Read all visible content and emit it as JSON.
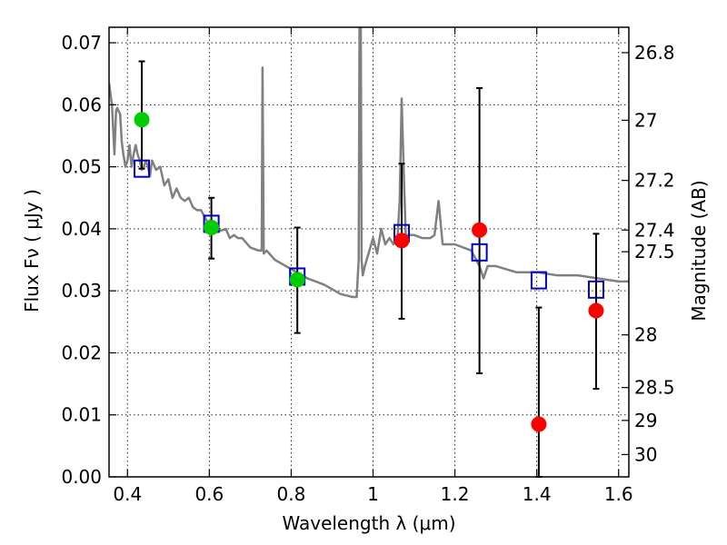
{
  "chart_data": {
    "type": "scatter",
    "xlabel": "Wavelength  λ (μm)",
    "ylabel_left": "Flux  Fν  ( μJy )",
    "ylabel_right": "Magnitude (AB)",
    "xlim": [
      0.355,
      1.625
    ],
    "ylim": [
      0.0,
      0.0725
    ],
    "grid": true,
    "x_ticks": [
      0.4,
      0.6,
      0.8,
      1.0,
      1.2,
      1.4,
      1.6
    ],
    "x_tick_labels": [
      "0.4",
      "0.6",
      "0.8",
      "1",
      "1.2",
      "1.4",
      "1.6"
    ],
    "y_ticks": [
      0.0,
      0.01,
      0.02,
      0.03,
      0.04,
      0.05,
      0.06,
      0.07
    ],
    "y_tick_labels": [
      "0.00",
      "0.01",
      "0.02",
      "0.03",
      "0.04",
      "0.05",
      "0.06",
      "0.07"
    ],
    "right_ticks": [
      {
        "flux": 0.0684,
        "label": "26.8"
      },
      {
        "flux": 0.0575,
        "label": "27"
      },
      {
        "flux": 0.0478,
        "label": "27.2"
      },
      {
        "flux": 0.0398,
        "label": "27.4"
      },
      {
        "flux": 0.0363,
        "label": "27.5"
      },
      {
        "flux": 0.0229,
        "label": "28"
      },
      {
        "flux": 0.0144,
        "label": "28.5"
      },
      {
        "flux": 0.0091,
        "label": "29"
      },
      {
        "flux": 0.0036,
        "label": "30"
      }
    ],
    "model_spectrum": {
      "color": "#808080",
      "x": [
        0.355,
        0.362,
        0.368,
        0.372,
        0.375,
        0.378,
        0.382,
        0.386,
        0.39,
        0.395,
        0.4,
        0.405,
        0.41,
        0.415,
        0.42,
        0.425,
        0.43,
        0.435,
        0.44,
        0.445,
        0.45,
        0.455,
        0.46,
        0.47,
        0.48,
        0.49,
        0.5,
        0.51,
        0.52,
        0.53,
        0.54,
        0.55,
        0.56,
        0.57,
        0.58,
        0.6,
        0.62,
        0.64,
        0.65,
        0.66,
        0.67,
        0.68,
        0.7,
        0.72,
        0.728,
        0.73,
        0.733,
        0.74,
        0.76,
        0.8,
        0.84,
        0.88,
        0.92,
        0.95,
        0.96,
        0.965,
        0.967,
        0.97,
        0.972,
        0.975,
        0.98,
        1.0,
        1.01,
        1.02,
        1.03,
        1.04,
        1.05,
        1.06,
        1.065,
        1.07,
        1.075,
        1.08,
        1.09,
        1.1,
        1.12,
        1.14,
        1.15,
        1.16,
        1.17,
        1.2,
        1.24,
        1.26,
        1.27,
        1.28,
        1.3,
        1.35,
        1.4,
        1.45,
        1.5,
        1.55,
        1.6,
        1.625
      ],
      "y": [
        0.0635,
        0.06,
        0.052,
        0.059,
        0.0595,
        0.059,
        0.0585,
        0.054,
        0.052,
        0.05,
        0.051,
        0.0535,
        0.05,
        0.052,
        0.0535,
        0.052,
        0.051,
        0.0495,
        0.05,
        0.051,
        0.05,
        0.0485,
        0.051,
        0.0495,
        0.05,
        0.047,
        0.048,
        0.045,
        0.0465,
        0.045,
        0.0445,
        0.045,
        0.0435,
        0.043,
        0.043,
        0.0405,
        0.0395,
        0.04,
        0.0385,
        0.039,
        0.0385,
        0.0385,
        0.037,
        0.0365,
        0.0365,
        0.066,
        0.036,
        0.0365,
        0.035,
        0.0335,
        0.032,
        0.031,
        0.0295,
        0.029,
        0.029,
        0.035,
        0.0725,
        0.0725,
        0.035,
        0.0325,
        0.034,
        0.0385,
        0.036,
        0.04,
        0.0375,
        0.0385,
        0.0375,
        0.0385,
        0.0445,
        0.061,
        0.049,
        0.039,
        0.039,
        0.039,
        0.0385,
        0.0385,
        0.039,
        0.0445,
        0.0375,
        0.0375,
        0.0365,
        0.034,
        0.032,
        0.034,
        0.034,
        0.033,
        0.033,
        0.0325,
        0.0325,
        0.032,
        0.0315,
        0.0315
      ]
    },
    "series": [
      {
        "marker": "open-square",
        "color": "#0000cc",
        "x": [
          0.435,
          0.605,
          0.815,
          1.07,
          1.26,
          1.405,
          1.545
        ],
        "y": [
          0.0497,
          0.0408,
          0.0323,
          0.0393,
          0.0362,
          0.0317,
          0.0302
        ]
      },
      {
        "marker": "filled-circle",
        "color": "#00cc00",
        "x": [
          0.435,
          0.605,
          0.815
        ],
        "y": [
          0.0576,
          0.0402,
          0.0318
        ]
      },
      {
        "marker": "filled-circle",
        "color": "#ff0000",
        "x": [
          1.07,
          1.26,
          1.405,
          1.545
        ],
        "y": [
          0.0381,
          0.0398,
          0.0085,
          0.0268
        ]
      }
    ],
    "error_bars": {
      "color": "#000000",
      "items": [
        {
          "x": 0.435,
          "low": 0.0497,
          "high": 0.067
        },
        {
          "x": 0.605,
          "low": 0.0352,
          "high": 0.045
        },
        {
          "x": 0.815,
          "low": 0.0232,
          "high": 0.0402
        },
        {
          "x": 1.07,
          "low": 0.0255,
          "high": 0.0505
        },
        {
          "x": 1.26,
          "low": 0.0167,
          "high": 0.0627
        },
        {
          "x": 1.405,
          "low": 0.0,
          "high": 0.0273
        },
        {
          "x": 1.545,
          "low": 0.0142,
          "high": 0.0392
        }
      ]
    }
  }
}
